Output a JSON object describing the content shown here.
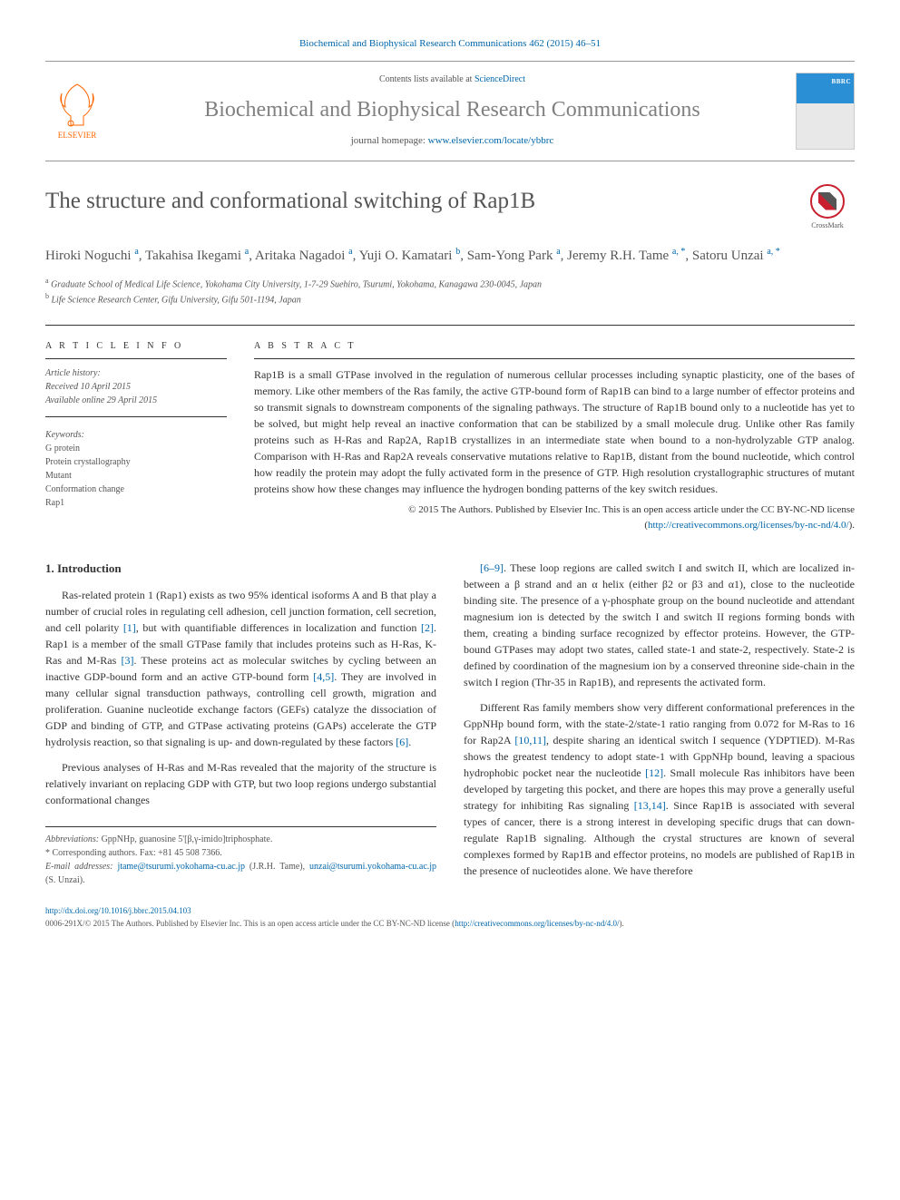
{
  "header": {
    "citation": "Biochemical and Biophysical Research Communications 462 (2015) 46–51",
    "contents_prefix": "Contents lists available at ",
    "contents_link": "ScienceDirect",
    "journal_name": "Biochemical and Biophysical Research Communications",
    "homepage_prefix": "journal homepage: ",
    "homepage_link": "www.elsevier.com/locate/ybbrc",
    "publisher": "ELSEVIER"
  },
  "article": {
    "title": "The structure and conformational switching of Rap1B",
    "crossmark": "CrossMark",
    "authors_html": "Hiroki Noguchi <sup>a</sup>, Takahisa Ikegami <sup>a</sup>, Aritaka Nagadoi <sup>a</sup>, Yuji O. Kamatari <sup>b</sup>, Sam-Yong Park <sup>a</sup>, Jeremy R.H. Tame <sup>a, *</sup>, Satoru Unzai <sup>a, *</sup>",
    "affiliations": [
      {
        "sup": "a",
        "text": "Graduate School of Medical Life Science, Yokohama City University, 1-7-29 Suehiro, Tsurumi, Yokohama, Kanagawa 230-0045, Japan"
      },
      {
        "sup": "b",
        "text": "Life Science Research Center, Gifu University, Gifu 501-1194, Japan"
      }
    ]
  },
  "info": {
    "heading": "A R T I C L E   I N F O",
    "history_label": "Article history:",
    "received": "Received 10 April 2015",
    "available": "Available online 29 April 2015",
    "keywords_label": "Keywords:",
    "keywords": [
      "G protein",
      "Protein crystallography",
      "Mutant",
      "Conformation change",
      "Rap1"
    ]
  },
  "abstract": {
    "heading": "A B S T R A C T",
    "text": "Rap1B is a small GTPase involved in the regulation of numerous cellular processes including synaptic plasticity, one of the bases of memory. Like other members of the Ras family, the active GTP-bound form of Rap1B can bind to a large number of effector proteins and so transmit signals to downstream components of the signaling pathways. The structure of Rap1B bound only to a nucleotide has yet to be solved, but might help reveal an inactive conformation that can be stabilized by a small molecule drug. Unlike other Ras family proteins such as H-Ras and Rap2A, Rap1B crystallizes in an intermediate state when bound to a non-hydrolyzable GTP analog. Comparison with H-Ras and Rap2A reveals conservative mutations relative to Rap1B, distant from the bound nucleotide, which control how readily the protein may adopt the fully activated form in the presence of GTP. High resolution crystallographic structures of mutant proteins show how these changes may influence the hydrogen bonding patterns of the key switch residues.",
    "license_prefix": "© 2015 The Authors. Published by Elsevier Inc. This is an open access article under the CC BY-NC-ND license (",
    "license_link": "http://creativecommons.org/licenses/by-nc-nd/4.0/",
    "license_suffix": ")."
  },
  "body": {
    "section_heading": "1. Introduction",
    "p1": "Ras-related protein 1 (Rap1) exists as two 95% identical isoforms A and B that play a number of crucial roles in regulating cell adhesion, cell junction formation, cell secretion, and cell polarity [1], but with quantifiable differences in localization and function [2]. Rap1 is a member of the small GTPase family that includes proteins such as H-Ras, K-Ras and M-Ras [3]. These proteins act as molecular switches by cycling between an inactive GDP-bound form and an active GTP-bound form [4,5]. They are involved in many cellular signal transduction pathways, controlling cell growth, migration and proliferation. Guanine nucleotide exchange factors (GEFs) catalyze the dissociation of GDP and binding of GTP, and GTPase activating proteins (GAPs) accelerate the GTP hydrolysis reaction, so that signaling is up- and down-regulated by these factors [6].",
    "p2": "Previous analyses of H-Ras and M-Ras revealed that the majority of the structure is relatively invariant on replacing GDP with GTP, but two loop regions undergo substantial conformational changes",
    "p3": "[6–9]. These loop regions are called switch I and switch II, which are localized in-between a β strand and an α helix (either β2 or β3 and α1), close to the nucleotide binding site. The presence of a γ-phosphate group on the bound nucleotide and attendant magnesium ion is detected by the switch I and switch II regions forming bonds with them, creating a binding surface recognized by effector proteins. However, the GTP-bound GTPases may adopt two states, called state-1 and state-2, respectively. State-2 is defined by coordination of the magnesium ion by a conserved threonine side-chain in the switch I region (Thr-35 in Rap1B), and represents the activated form.",
    "p4": "Different Ras family members show very different conformational preferences in the GppNHp bound form, with the state-2/state-1 ratio ranging from 0.072 for M-Ras to 16 for Rap2A [10,11], despite sharing an identical switch I sequence (YDPTIED). M-Ras shows the greatest tendency to adopt state-1 with GppNHp bound, leaving a spacious hydrophobic pocket near the nucleotide [12]. Small molecule Ras inhibitors have been developed by targeting this pocket, and there are hopes this may prove a generally useful strategy for inhibiting Ras signaling [13,14]. Since Rap1B is associated with several types of cancer, there is a strong interest in developing specific drugs that can down-regulate Rap1B signaling. Although the crystal structures are known of several complexes formed by Rap1B and effector proteins, no models are published of Rap1B in the presence of nucleotides alone. We have therefore"
  },
  "footnotes": {
    "abbrev_label": "Abbreviations:",
    "abbrev_text": " GppNHp, guanosine 5'[β,γ-imido]triphosphate.",
    "corr_label": "* Corresponding authors.",
    "corr_fax": " Fax: +81 45 508 7366.",
    "email_label": "E-mail addresses:",
    "email1": "jtame@tsurumi.yokohama-cu.ac.jp",
    "email1_who": " (J.R.H. Tame), ",
    "email2": "unzai@tsurumi.yokohama-cu.ac.jp",
    "email2_who": " (S. Unzai)."
  },
  "footer": {
    "doi": "http://dx.doi.org/10.1016/j.bbrc.2015.04.103",
    "issn_line": "0006-291X/© 2015 The Authors. Published by Elsevier Inc. This is an open access article under the CC BY-NC-ND license (",
    "issn_link": "http://creativecommons.org/licenses/by-nc-nd/4.0/",
    "issn_suffix": ")."
  },
  "refs": {
    "r1": "[1]",
    "r2": "[2]",
    "r3": "[3]",
    "r45": "[4,5]",
    "r6": "[6]",
    "r69": "[6–9]",
    "r1011": "[10,11]",
    "r12": "[12]",
    "r1314": "[13,14]"
  }
}
